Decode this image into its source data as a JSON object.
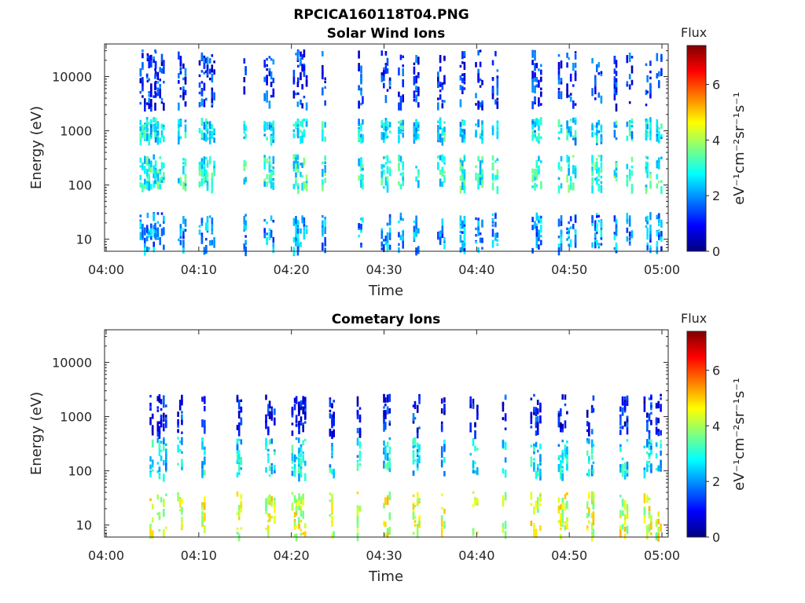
{
  "figure_title": "RPCICA160118T04.PNG",
  "colorbar": {
    "title": "Flux",
    "label": "eV⁻¹cm⁻²sr⁻¹s⁻¹",
    "ticks": [
      0,
      2,
      4,
      6
    ],
    "range": [
      0,
      7.4
    ]
  },
  "chart_data": [
    {
      "type": "heatmap",
      "title": "Solar Wind Ions",
      "xlabel": "Time",
      "ylabel": "Energy (eV)",
      "y_scale": "log",
      "ylim": [
        6,
        40000
      ],
      "xlim": [
        "04:00",
        "05:00"
      ],
      "x_ticks": [
        "04:00",
        "04:10",
        "04:20",
        "04:30",
        "04:40",
        "04:50",
        "05:00"
      ],
      "y_ticks": [
        10,
        100,
        1000,
        10000
      ],
      "bursts_minutes": [
        4.1,
        4.9,
        5.8,
        8.2,
        10.5,
        11.3,
        15.0,
        17.6,
        20.5,
        21.2,
        23.5,
        27.5,
        30.2,
        31.8,
        33.5,
        36.2,
        38.5,
        40.3,
        42.0,
        46.5,
        49.0,
        50.2,
        53.0,
        55.0,
        56.5,
        58.5,
        59.8
      ],
      "bands_eV": [
        {
          "energy_min": 6,
          "energy_max": 30,
          "typical_flux": 2.0
        },
        {
          "energy_min": 90,
          "energy_max": 350,
          "typical_flux": 3.0
        },
        {
          "energy_min": 700,
          "energy_max": 1700,
          "typical_flux": 2.6
        },
        {
          "energy_min": 3000,
          "energy_max": 30000,
          "typical_flux": 1.2
        }
      ]
    },
    {
      "type": "heatmap",
      "title": "Cometary Ions",
      "xlabel": "Time",
      "ylabel": "Energy (eV)",
      "y_scale": "log",
      "ylim": [
        6,
        40000
      ],
      "xlim": [
        "04:00",
        "05:00"
      ],
      "x_ticks": [
        "04:00",
        "04:10",
        "04:20",
        "04:30",
        "04:40",
        "04:50",
        "05:00"
      ],
      "y_ticks": [
        10,
        100,
        1000,
        10000
      ],
      "bursts_minutes": [
        4.9,
        6.0,
        8.0,
        10.5,
        14.4,
        17.7,
        20.6,
        21.2,
        24.4,
        27.3,
        30.3,
        33.5,
        36.4,
        39.7,
        43.0,
        46.4,
        49.3,
        52.3,
        55.9,
        58.5,
        59.8
      ],
      "bands_eV": [
        {
          "energy_min": 6,
          "energy_max": 40,
          "typical_flux": 4.3
        },
        {
          "energy_min": 80,
          "energy_max": 400,
          "typical_flux": 2.6
        },
        {
          "energy_min": 500,
          "energy_max": 2500,
          "typical_flux": 1.0
        }
      ]
    }
  ]
}
